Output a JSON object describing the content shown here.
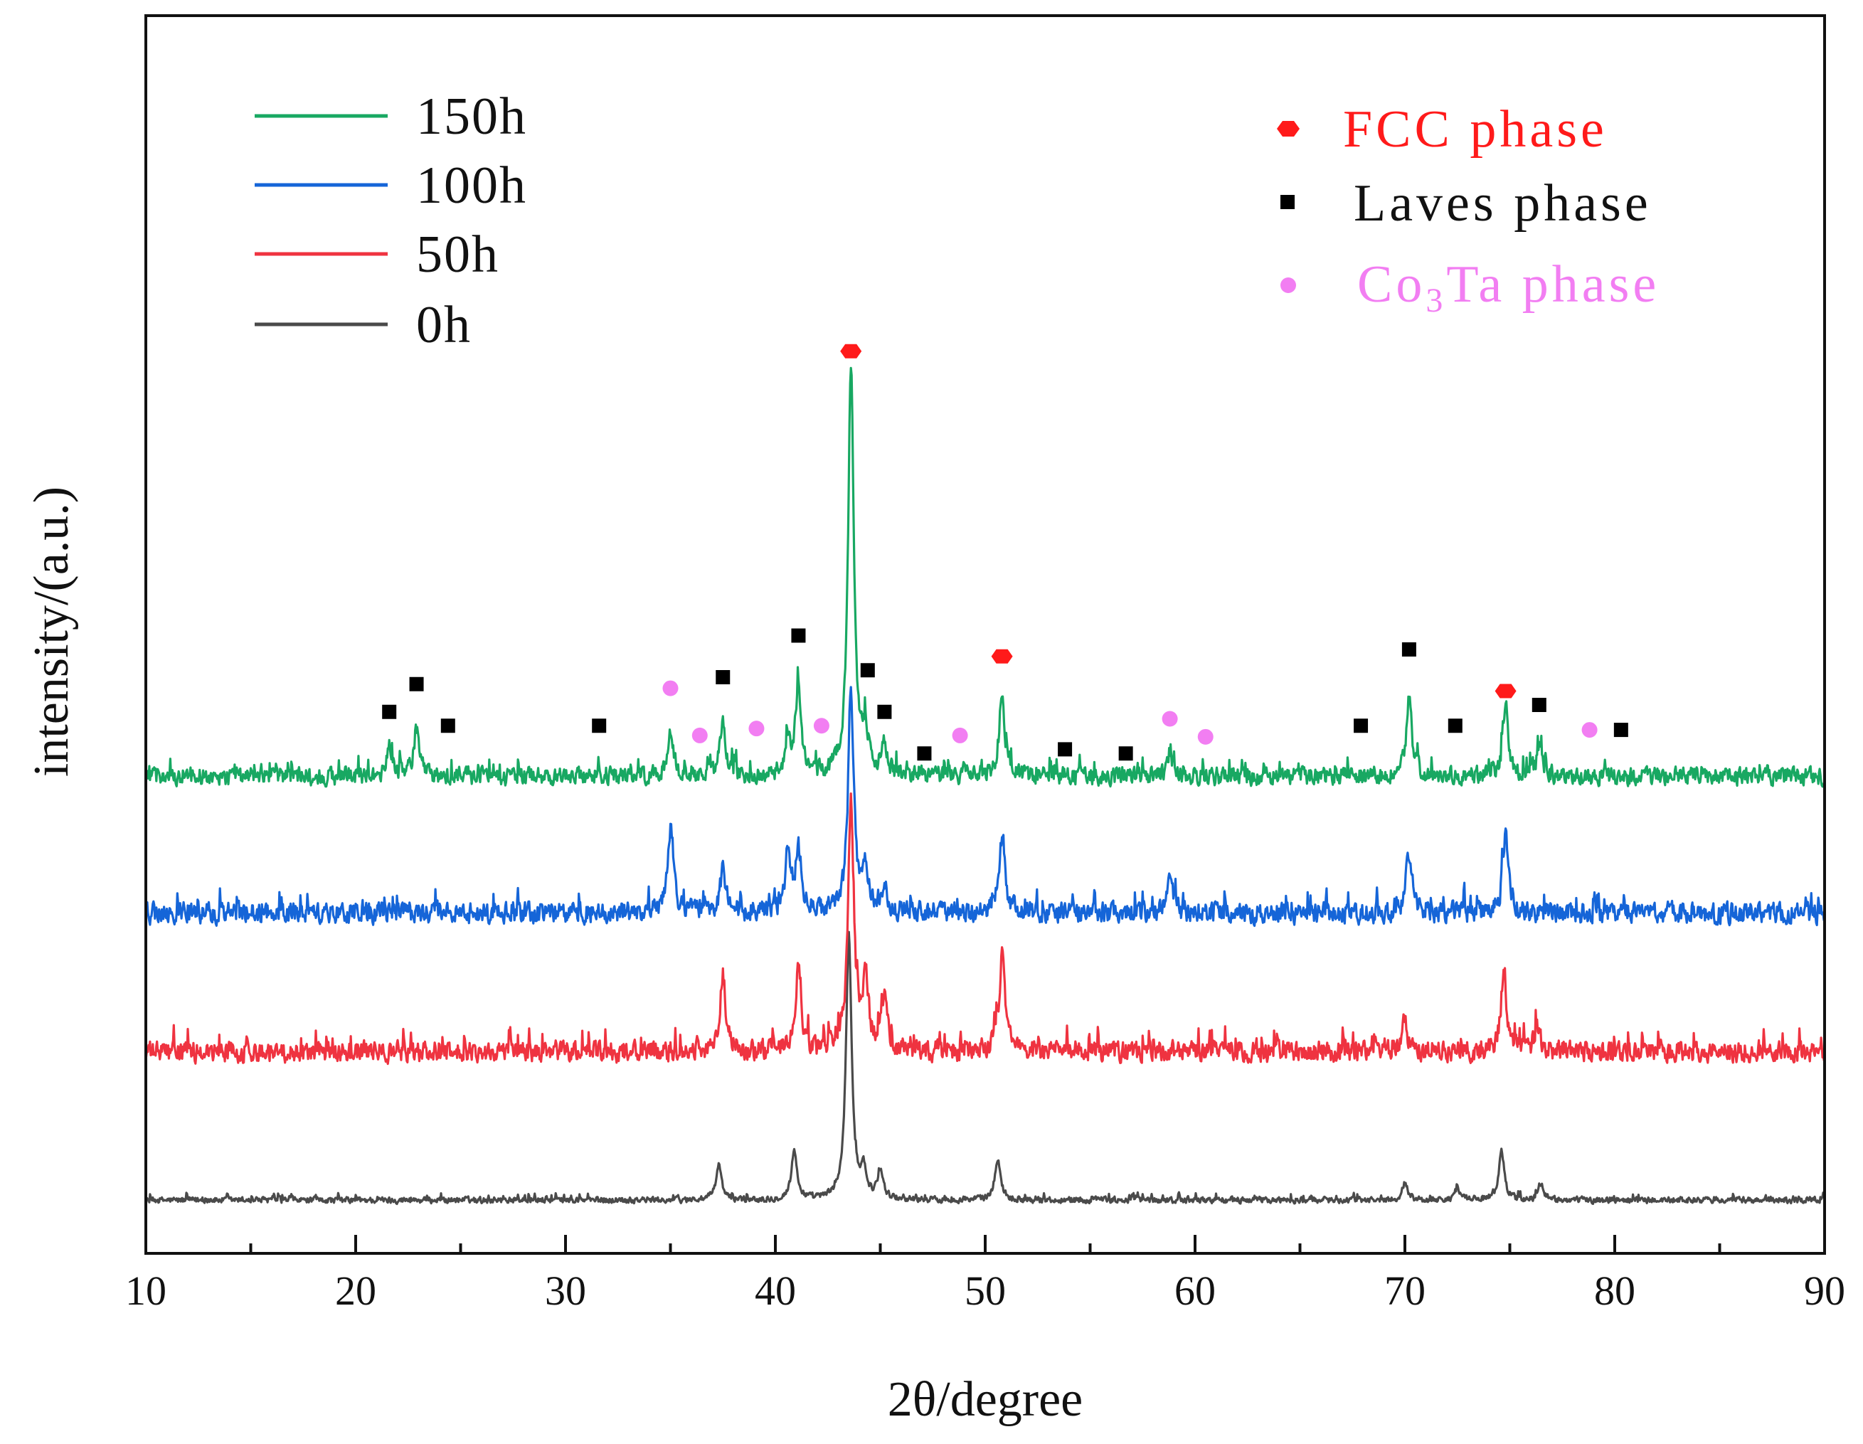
{
  "chart_data": {
    "type": "line",
    "title": "",
    "xlabel": "2θ/degree",
    "ylabel": "intensity/(a.u.)",
    "xlim": [
      10,
      90
    ],
    "xticks": [
      10,
      20,
      30,
      40,
      50,
      60,
      70,
      80,
      90
    ],
    "yticks_shown": false,
    "series": [
      {
        "name": "150h",
        "color": "#18a862",
        "offset": 3.0,
        "noise": 0.17,
        "peaks": [
          {
            "x": 21.6,
            "h": 0.22
          },
          {
            "x": 22.9,
            "h": 0.35
          },
          {
            "x": 35.0,
            "h": 0.3
          },
          {
            "x": 37.5,
            "h": 0.4
          },
          {
            "x": 40.6,
            "h": 0.25
          },
          {
            "x": 41.1,
            "h": 0.65
          },
          {
            "x": 43.6,
            "h": 2.95
          },
          {
            "x": 44.3,
            "h": 0.3
          },
          {
            "x": 45.2,
            "h": 0.22
          },
          {
            "x": 50.8,
            "h": 0.6
          },
          {
            "x": 58.8,
            "h": 0.18
          },
          {
            "x": 70.2,
            "h": 0.55
          },
          {
            "x": 74.8,
            "h": 0.5
          },
          {
            "x": 76.4,
            "h": 0.2
          }
        ]
      },
      {
        "name": "100h",
        "color": "#1565d8",
        "offset": 2.0,
        "noise": 0.2,
        "peaks": [
          {
            "x": 35.0,
            "h": 0.6
          },
          {
            "x": 37.5,
            "h": 0.3
          },
          {
            "x": 40.6,
            "h": 0.45
          },
          {
            "x": 41.1,
            "h": 0.45
          },
          {
            "x": 43.6,
            "h": 1.6
          },
          {
            "x": 44.3,
            "h": 0.3
          },
          {
            "x": 45.2,
            "h": 0.22
          },
          {
            "x": 50.8,
            "h": 0.55
          },
          {
            "x": 58.8,
            "h": 0.22
          },
          {
            "x": 70.2,
            "h": 0.45
          },
          {
            "x": 74.8,
            "h": 0.6
          }
        ]
      },
      {
        "name": "50h",
        "color": "#ef3340",
        "offset": 1.0,
        "noise": 0.2,
        "peaks": [
          {
            "x": 37.5,
            "h": 0.55
          },
          {
            "x": 41.1,
            "h": 0.6
          },
          {
            "x": 43.6,
            "h": 1.8
          },
          {
            "x": 44.3,
            "h": 0.5
          },
          {
            "x": 45.2,
            "h": 0.4
          },
          {
            "x": 50.8,
            "h": 0.7
          },
          {
            "x": 70.0,
            "h": 0.22
          },
          {
            "x": 74.7,
            "h": 0.55
          },
          {
            "x": 76.3,
            "h": 0.18
          }
        ]
      },
      {
        "name": "0h",
        "color": "#4a4a4a",
        "offset": 0.0,
        "noise": 0.06,
        "peaks": [
          {
            "x": 37.3,
            "h": 0.25
          },
          {
            "x": 40.9,
            "h": 0.35
          },
          {
            "x": 43.5,
            "h": 1.9
          },
          {
            "x": 44.2,
            "h": 0.2
          },
          {
            "x": 45.0,
            "h": 0.2
          },
          {
            "x": 50.6,
            "h": 0.3
          },
          {
            "x": 70.0,
            "h": 0.12
          },
          {
            "x": 72.5,
            "h": 0.08
          },
          {
            "x": 74.6,
            "h": 0.35
          },
          {
            "x": 76.5,
            "h": 0.1
          }
        ]
      }
    ],
    "legend": {
      "position": "top-left",
      "entries": [
        "150h",
        "100h",
        "50h",
        "0h"
      ]
    },
    "phase_legend": {
      "position": "top-right",
      "entries": [
        {
          "label": "FCC  phase",
          "marker": "hexagon",
          "color": "#ff1a1a"
        },
        {
          "label": "Laves  phase",
          "marker": "square",
          "color": "#000000"
        },
        {
          "label_main": "Co",
          "label_sub": "3",
          "label_rest": "Ta  phase",
          "marker": "circle",
          "color": "#f27ef2"
        }
      ]
    },
    "phase_markers": {
      "fcc": [
        {
          "x": 43.6,
          "y": 6.15
        },
        {
          "x": 50.8,
          "y": 3.95
        },
        {
          "x": 74.8,
          "y": 3.7
        }
      ],
      "laves": [
        {
          "x": 21.6,
          "y": 3.55
        },
        {
          "x": 22.9,
          "y": 3.75
        },
        {
          "x": 24.4,
          "y": 3.45
        },
        {
          "x": 31.6,
          "y": 3.45
        },
        {
          "x": 37.5,
          "y": 3.8
        },
        {
          "x": 41.1,
          "y": 4.1
        },
        {
          "x": 44.4,
          "y": 3.85
        },
        {
          "x": 45.2,
          "y": 3.55
        },
        {
          "x": 47.1,
          "y": 3.25
        },
        {
          "x": 53.8,
          "y": 3.28
        },
        {
          "x": 56.7,
          "y": 3.25
        },
        {
          "x": 67.9,
          "y": 3.45
        },
        {
          "x": 70.2,
          "y": 4.0
        },
        {
          "x": 72.4,
          "y": 3.45
        },
        {
          "x": 76.4,
          "y": 3.6
        },
        {
          "x": 80.3,
          "y": 3.42
        }
      ],
      "co3ta": [
        {
          "x": 35.0,
          "y": 3.72
        },
        {
          "x": 36.4,
          "y": 3.38
        },
        {
          "x": 39.1,
          "y": 3.43
        },
        {
          "x": 42.2,
          "y": 3.45
        },
        {
          "x": 48.8,
          "y": 3.38
        },
        {
          "x": 58.8,
          "y": 3.5
        },
        {
          "x": 60.5,
          "y": 3.37
        },
        {
          "x": 78.8,
          "y": 3.42
        }
      ]
    }
  }
}
